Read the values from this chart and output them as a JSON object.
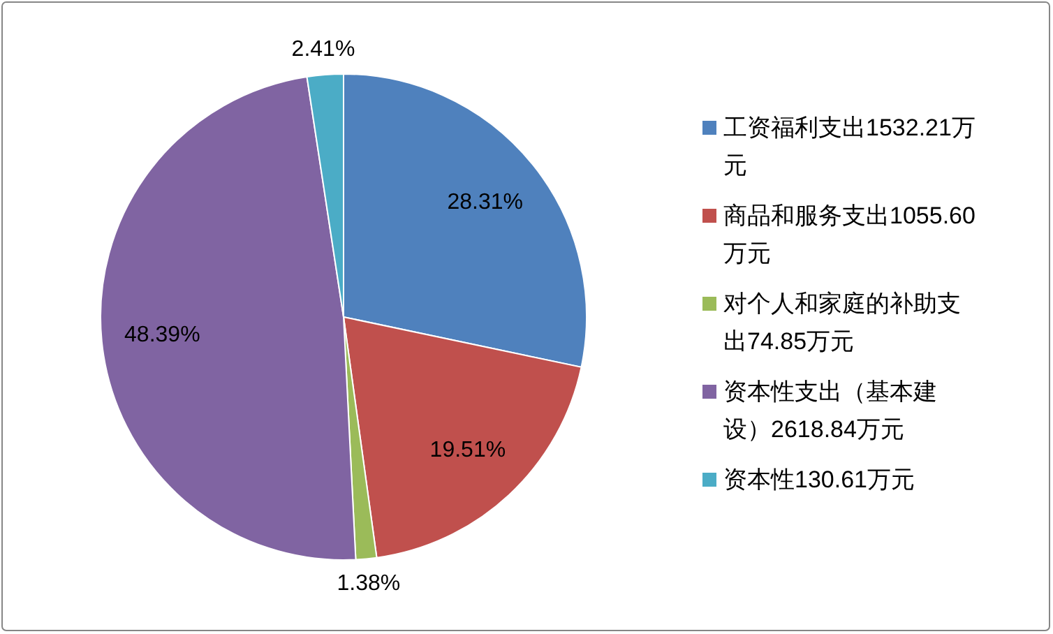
{
  "chart_data": {
    "type": "pie",
    "categories": [
      "工资福利支出1532.21万元",
      "商品和服务支出1055.60万元",
      "对个人和家庭的补助支出74.85万元",
      "资本性支出（基本建设）2618.84万元",
      "资本性130.61万元"
    ],
    "values": [
      28.31,
      19.51,
      1.38,
      48.39,
      2.41
    ],
    "colors": [
      "#4f81bd",
      "#c0504d",
      "#9bbb59",
      "#8064a2",
      "#4bacc6"
    ],
    "value_labels": [
      "28.31%",
      "19.51%",
      "1.38%",
      "48.39%",
      "2.41%"
    ],
    "legend": "right"
  }
}
